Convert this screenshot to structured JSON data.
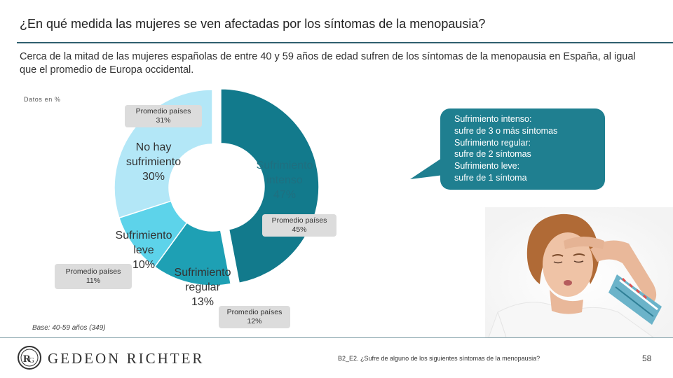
{
  "header": {
    "title": "¿En qué medida las mujeres se ven afectadas por los síntomas de la menopausia?",
    "subtitle": "Cerca de la mitad de las mujeres españolas de entre 40 y 59 años de edad sufren de los síntomas de la menopausia en España, al igual que el promedio de Europa occidental."
  },
  "unit_note": "Datos en %",
  "base_note": "Base: 40-59 años (349)",
  "colors": {
    "intenso": "#127a8c",
    "regular": "#1ea0b4",
    "leve": "#5dd3ea",
    "no_hay": "#b3e7f7",
    "callout": "#1f7f90",
    "rule": "#2f5f6f"
  },
  "chart_data": {
    "type": "pie",
    "donut": true,
    "categories": [
      {
        "key": "intenso",
        "label_lines": [
          "Sufrimiento",
          "intenso",
          "47%"
        ],
        "value": 47,
        "benchmark_lines": [
          "Promedio países",
          "45%"
        ],
        "benchmark": 45
      },
      {
        "key": "regular",
        "label_lines": [
          "Sufrimiento",
          "regular",
          "13%"
        ],
        "value": 13,
        "benchmark_lines": [
          "Promedio países",
          "12%"
        ],
        "benchmark": 12
      },
      {
        "key": "leve",
        "label_lines": [
          "Sufrimiento",
          "leve",
          "10%"
        ],
        "value": 10,
        "benchmark_lines": [
          "Promedio países",
          "11%"
        ],
        "benchmark": 11
      },
      {
        "key": "no_hay",
        "label_lines": [
          "No hay",
          "sufrimiento",
          "30%"
        ],
        "value": 30,
        "benchmark_lines": [
          "Promedio países",
          "31%"
        ],
        "benchmark": 31
      }
    ]
  },
  "callout": {
    "lines": [
      "Sufrimiento intenso:",
      "sufre de 3 o más síntomas",
      "Sufrimiento regular:",
      "sufre de 2 síntomas",
      "Sufrimiento leve:",
      "sufre de 1 síntoma"
    ]
  },
  "footer": {
    "brand": "GEDEON RICHTER",
    "logo_icon": "gedeon-richter-logo-icon",
    "question": "B2_E2. ¿Sufre de alguno de los siguientes síntomas de la menopausia?",
    "page_number": "58"
  }
}
